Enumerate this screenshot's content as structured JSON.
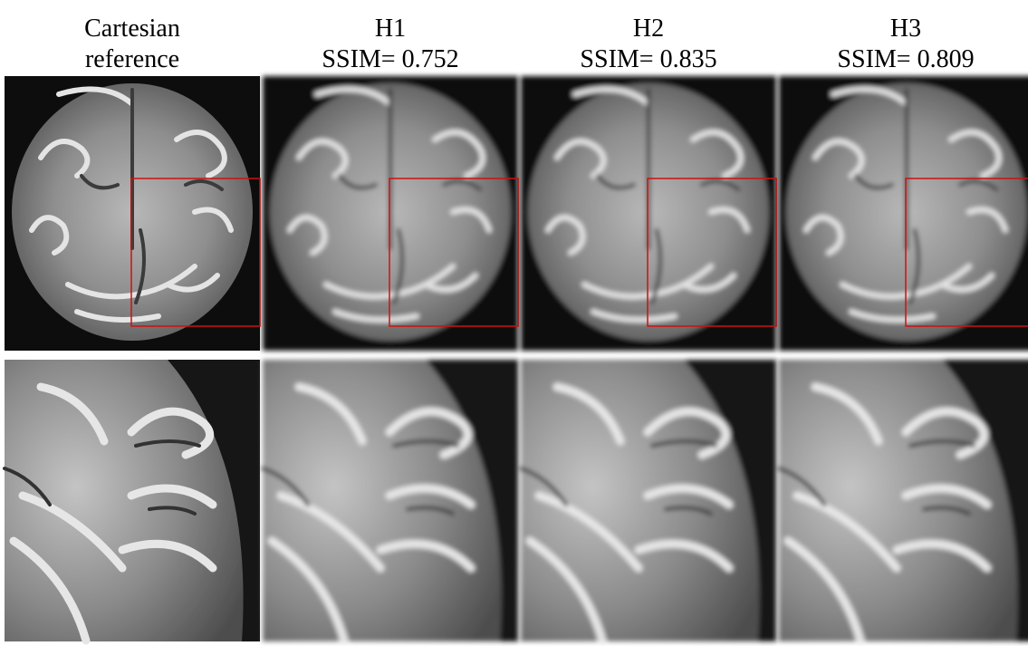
{
  "columns": [
    {
      "title": "Cartesian",
      "subtitle": "reference"
    },
    {
      "title": "H1",
      "subtitle": "SSIM= 0.752"
    },
    {
      "title": "H2",
      "subtitle": "SSIM= 0.835"
    },
    {
      "title": "H3",
      "subtitle": "SSIM= 0.809"
    }
  ]
}
